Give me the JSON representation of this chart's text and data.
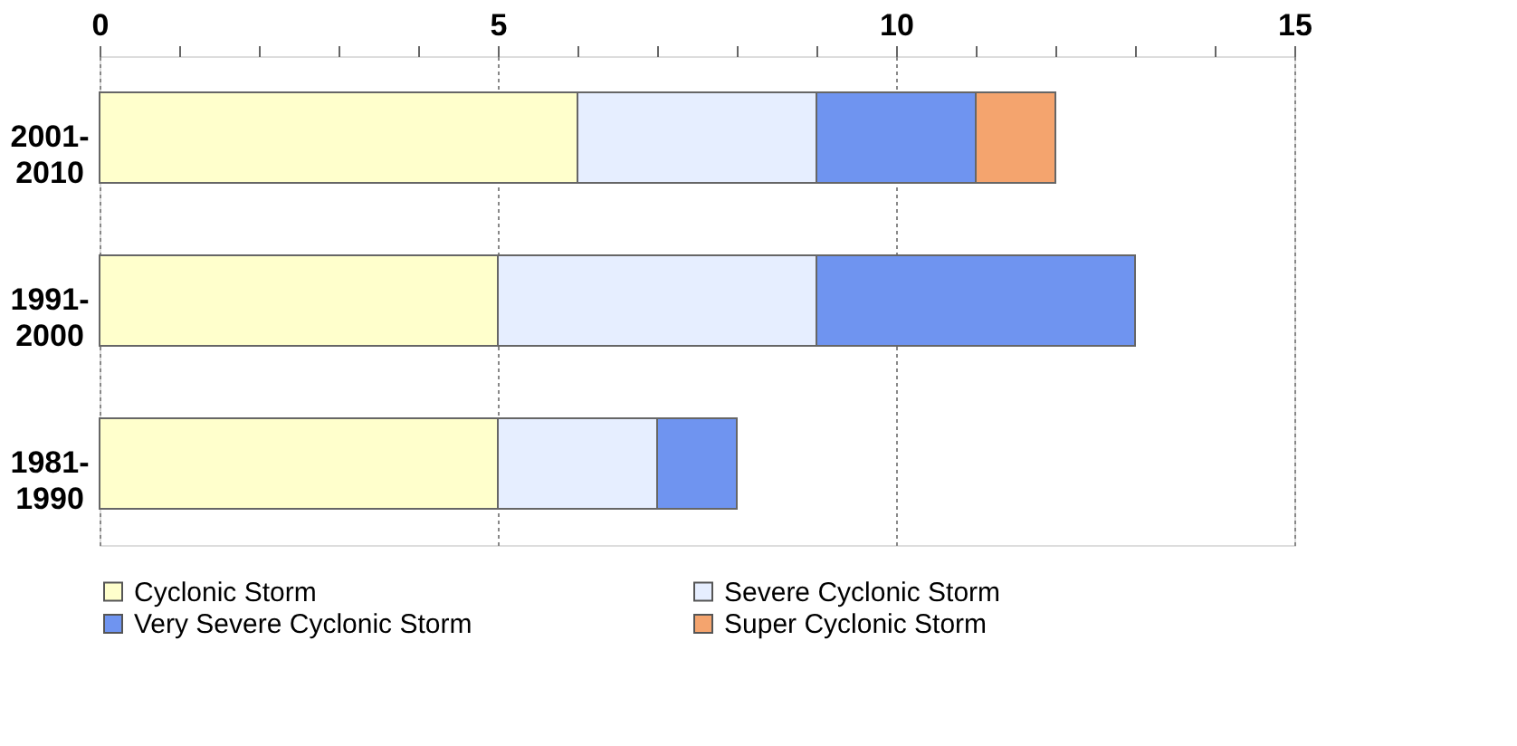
{
  "chart_data": {
    "type": "bar",
    "orientation": "horizontal",
    "stacked": true,
    "categories": [
      "2001-\n2010",
      "1991-\n2000",
      "1981-\n1990"
    ],
    "series": [
      {
        "name": "Cyclonic Storm",
        "color": "#ffffcc",
        "values": [
          6,
          5,
          5
        ]
      },
      {
        "name": "Severe Cyclonic Storm",
        "color": "#e6eeff",
        "values": [
          3,
          4,
          2
        ]
      },
      {
        "name": "Very Severe Cyclonic Storm",
        "color": "#6f94f0",
        "values": [
          2,
          4,
          1
        ]
      },
      {
        "name": "Super Cyclonic Storm",
        "color": "#f4a46e",
        "values": [
          1,
          null,
          null
        ]
      }
    ],
    "xlim": [
      0,
      15
    ],
    "xticks": [
      0,
      {
        "value": 1,
        "label": null
      },
      {
        "value": 2,
        "label": null
      },
      {
        "value": 3,
        "label": null
      },
      {
        "value": 4,
        "label": null
      },
      5,
      {
        "value": 6,
        "label": null
      },
      {
        "value": 7,
        "label": null
      },
      {
        "value": 8,
        "label": null
      },
      {
        "value": 9,
        "label": null
      },
      10,
      {
        "value": 11,
        "label": null
      },
      {
        "value": 12,
        "label": null
      },
      {
        "value": 13,
        "label": null
      },
      {
        "value": 14,
        "label": null
      },
      15
    ],
    "grid": "x",
    "legend": "bottom"
  }
}
